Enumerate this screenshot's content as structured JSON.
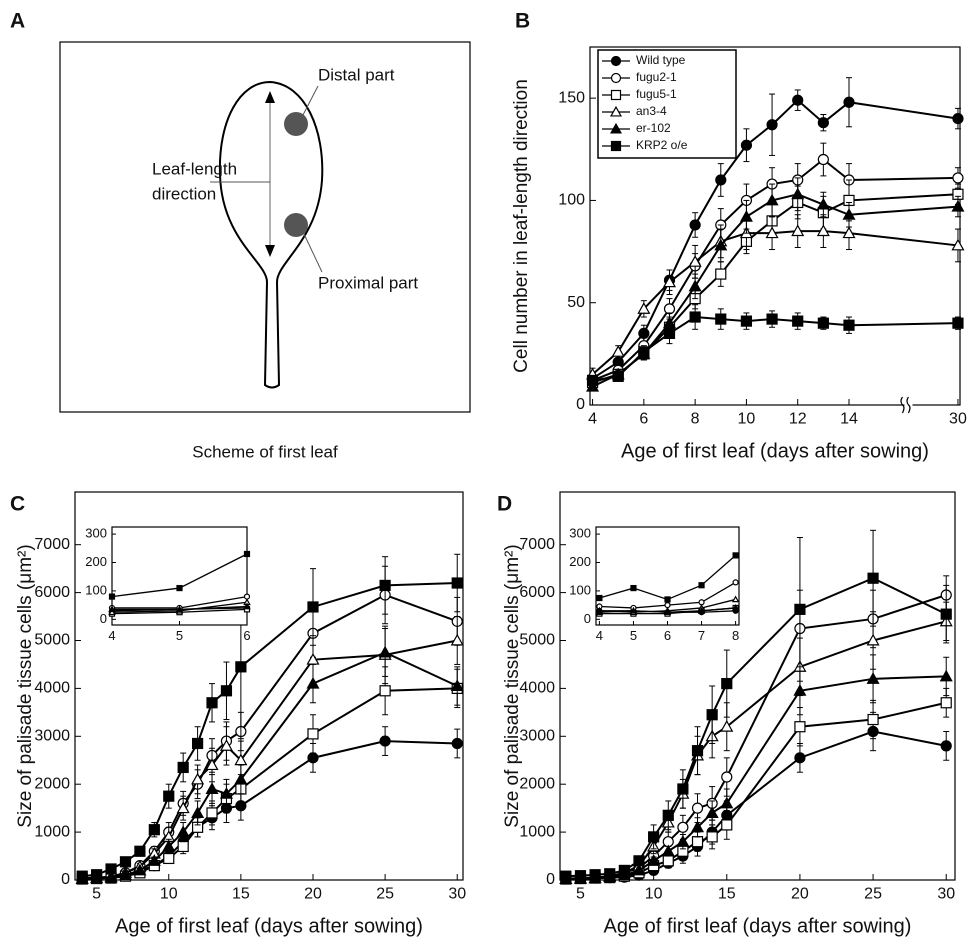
{
  "scheme": {
    "panel": "A",
    "title": "Scheme of first leaf",
    "distal": "Distal part",
    "direction": [
      "Leaf-length",
      "direction"
    ],
    "proximal": "Proximal part"
  },
  "chart_data": [
    {
      "type": "line",
      "panel": "B",
      "x_label": "Age of first leaf (days after sowing)",
      "y_label": "Cell number in leaf-length direction",
      "x": [
        4,
        5,
        6,
        7,
        8,
        9,
        10,
        11,
        12,
        13,
        14,
        30
      ],
      "xlim": [
        3.9,
        30.3
      ],
      "xticks": [
        4,
        6,
        8,
        10,
        12,
        14,
        30
      ],
      "x_break": true,
      "ylim": [
        0,
        175
      ],
      "yticks": [
        0,
        50,
        100,
        150
      ],
      "legend": "upper left",
      "series": [
        {
          "name": "Wild type",
          "color": "#000000",
          "marker": "circle",
          "filled": true,
          "values": [
            13,
            21,
            35,
            61,
            88,
            110,
            127,
            137,
            149,
            138,
            148,
            140
          ],
          "errors": [
            3,
            3,
            4,
            5,
            6,
            8,
            8,
            15,
            5,
            4,
            12,
            5
          ]
        },
        {
          "name": "fugu2-1",
          "color": "#000000",
          "marker": "circle",
          "filled": false,
          "values": [
            12,
            17,
            29,
            47,
            68,
            88,
            100,
            108,
            110,
            120,
            110,
            111
          ],
          "errors": [
            2,
            2,
            4,
            5,
            6,
            8,
            8,
            8,
            8,
            8,
            8,
            5
          ]
        },
        {
          "name": "fugu5-1",
          "color": "#000000",
          "marker": "square",
          "filled": false,
          "values": [
            11,
            15,
            25,
            38,
            52,
            64,
            80,
            90,
            99,
            94,
            100,
            103
          ],
          "errors": [
            2,
            2,
            3,
            5,
            5,
            6,
            6,
            8,
            8,
            8,
            10,
            5
          ]
        },
        {
          "name": "an3-4",
          "color": "#000000",
          "marker": "triangle",
          "filled": false,
          "values": [
            15,
            26,
            47,
            60,
            70,
            80,
            84,
            84,
            85,
            85,
            84,
            78
          ],
          "errors": [
            3,
            3,
            4,
            6,
            8,
            8,
            8,
            8,
            8,
            8,
            8,
            8
          ]
        },
        {
          "name": "er-102",
          "color": "#000000",
          "marker": "triangle",
          "filled": true,
          "values": [
            9,
            15,
            25,
            40,
            58,
            78,
            92,
            100,
            103,
            98,
            93,
            97
          ],
          "errors": [
            2,
            2,
            3,
            5,
            6,
            8,
            8,
            8,
            8,
            6,
            6,
            5
          ]
        },
        {
          "name": "KRP2 o/e",
          "color": "#000000",
          "marker": "square",
          "filled": true,
          "values": [
            12,
            14,
            26,
            35,
            43,
            42,
            41,
            42,
            41,
            40,
            39,
            40
          ],
          "errors": [
            2,
            2,
            3,
            5,
            6,
            5,
            4,
            4,
            4,
            3,
            4,
            3
          ]
        }
      ]
    },
    {
      "type": "line",
      "panel": "C",
      "x_label": "Age of first leaf (days after sowing)",
      "y_label": "Size of palisade tissue cells (μm²)",
      "x": [
        4,
        5,
        6,
        7,
        8,
        9,
        10,
        11,
        12,
        13,
        14,
        15,
        20,
        25,
        30
      ],
      "xlim": [
        3.5,
        30.4
      ],
      "xticks": [
        5,
        10,
        15,
        20,
        25,
        30
      ],
      "ylim": [
        0,
        8100
      ],
      "yticks": [
        0,
        1000,
        2000,
        3000,
        4000,
        5000,
        6000,
        7000
      ],
      "series": [
        {
          "color": "#000000",
          "marker": "circle",
          "filled": true,
          "values": [
            30,
            40,
            50,
            100,
            200,
            300,
            500,
            800,
            1100,
            1300,
            1500,
            1550,
            2550,
            2900,
            2850
          ],
          "errors": [
            10,
            10,
            20,
            30,
            50,
            60,
            100,
            150,
            200,
            250,
            300,
            300,
            300,
            300,
            300
          ]
        },
        {
          "color": "#000000",
          "marker": "circle",
          "filled": false,
          "values": [
            40,
            50,
            70,
            150,
            300,
            600,
            1000,
            1600,
            2000,
            2600,
            2900,
            3100,
            5150,
            5950,
            5400
          ],
          "errors": [
            10,
            10,
            20,
            40,
            60,
            100,
            200,
            250,
            300,
            350,
            400,
            400,
            500,
            600,
            500
          ]
        },
        {
          "color": "#000000",
          "marker": "square",
          "filled": false,
          "values": [
            20,
            30,
            40,
            80,
            150,
            300,
            450,
            700,
            1100,
            1400,
            1700,
            1900,
            3050,
            3950,
            4000
          ],
          "errors": [
            10,
            10,
            20,
            30,
            50,
            60,
            100,
            150,
            200,
            250,
            300,
            300,
            400,
            500,
            400
          ]
        },
        {
          "color": "#000000",
          "marker": "triangle",
          "filled": false,
          "values": [
            20,
            40,
            60,
            150,
            280,
            550,
            900,
            1500,
            2100,
            2400,
            2800,
            2500,
            4600,
            4700,
            5000
          ],
          "errors": [
            10,
            10,
            20,
            40,
            60,
            100,
            200,
            250,
            300,
            350,
            400,
            400,
            500,
            600,
            500
          ]
        },
        {
          "color": "#000000",
          "marker": "triangle",
          "filled": true,
          "values": [
            30,
            40,
            50,
            100,
            200,
            400,
            700,
            1000,
            1400,
            1900,
            1800,
            2100,
            4100,
            4750,
            4050
          ],
          "errors": [
            10,
            10,
            20,
            30,
            50,
            80,
            150,
            200,
            250,
            300,
            300,
            300,
            400,
            500,
            400
          ]
        },
        {
          "color": "#000000",
          "marker": "square",
          "filled": true,
          "values": [
            80,
            110,
            230,
            380,
            600,
            1050,
            1750,
            2350,
            2850,
            3700,
            3950,
            4450,
            5700,
            6150,
            6200
          ],
          "errors": [
            20,
            30,
            50,
            80,
            100,
            150,
            250,
            300,
            350,
            400,
            600,
            1500,
            800,
            600,
            600
          ]
        }
      ],
      "inset": {
        "x": [
          4,
          5,
          6
        ],
        "xlim": [
          4,
          6
        ],
        "xticks": [
          4,
          5,
          6
        ],
        "ylim": [
          -20,
          325
        ],
        "yticks": [
          0,
          100,
          200,
          300
        ],
        "series": [
          {
            "color": "#000000",
            "marker": "circle",
            "filled": true,
            "values": [
              30,
              35,
              40
            ]
          },
          {
            "color": "#000000",
            "marker": "circle",
            "filled": false,
            "values": [
              40,
              40,
              80
            ]
          },
          {
            "color": "#000000",
            "marker": "square",
            "filled": false,
            "values": [
              20,
              25,
              35
            ]
          },
          {
            "color": "#000000",
            "marker": "triangle",
            "filled": false,
            "values": [
              25,
              30,
              60
            ]
          },
          {
            "color": "#000000",
            "marker": "triangle",
            "filled": true,
            "values": [
              35,
              35,
              45
            ]
          },
          {
            "color": "#000000",
            "marker": "square",
            "filled": true,
            "values": [
              80,
              110,
              230
            ]
          }
        ]
      }
    },
    {
      "type": "line",
      "panel": "D",
      "x_label": "Age of first leaf (days after sowing)",
      "y_label": "Size of palisade tissue cells (μm²)",
      "x": [
        4,
        5,
        6,
        7,
        8,
        9,
        10,
        11,
        12,
        13,
        14,
        15,
        20,
        25,
        30
      ],
      "xlim": [
        3.6,
        30.6
      ],
      "xticks": [
        5,
        10,
        15,
        20,
        25,
        30
      ],
      "ylim": [
        0,
        8100
      ],
      "yticks": [
        0,
        1000,
        2000,
        3000,
        4000,
        5000,
        6000,
        7000
      ],
      "series": [
        {
          "color": "#000000",
          "marker": "circle",
          "filled": true,
          "values": [
            20,
            30,
            40,
            50,
            60,
            100,
            200,
            350,
            500,
            700,
            1000,
            1350,
            2550,
            3100,
            2800
          ],
          "errors": [
            10,
            10,
            10,
            20,
            20,
            40,
            60,
            100,
            150,
            200,
            250,
            300,
            300,
            400,
            300
          ]
        },
        {
          "color": "#000000",
          "marker": "circle",
          "filled": false,
          "values": [
            30,
            40,
            50,
            80,
            150,
            250,
            500,
            800,
            1100,
            1500,
            1600,
            2150,
            5250,
            5450,
            5950
          ],
          "errors": [
            10,
            10,
            20,
            30,
            50,
            60,
            100,
            200,
            250,
            300,
            350,
            400,
            800,
            600,
            400
          ]
        },
        {
          "color": "#000000",
          "marker": "square",
          "filled": false,
          "values": [
            20,
            30,
            40,
            50,
            80,
            150,
            300,
            400,
            600,
            800,
            900,
            1150,
            3200,
            3350,
            3700
          ],
          "errors": [
            10,
            10,
            10,
            20,
            30,
            50,
            80,
            100,
            150,
            200,
            250,
            300,
            400,
            400,
            300
          ]
        },
        {
          "color": "#000000",
          "marker": "triangle",
          "filled": false,
          "values": [
            20,
            30,
            40,
            80,
            150,
            300,
            700,
            1200,
            1800,
            2600,
            3000,
            3200,
            4450,
            5000,
            5400
          ],
          "errors": [
            10,
            10,
            20,
            30,
            50,
            80,
            150,
            200,
            300,
            400,
            450,
            500,
            600,
            600,
            400
          ]
        },
        {
          "color": "#000000",
          "marker": "triangle",
          "filled": true,
          "values": [
            20,
            30,
            40,
            60,
            100,
            200,
            400,
            600,
            800,
            1100,
            1400,
            1600,
            3950,
            4200,
            4250
          ],
          "errors": [
            10,
            10,
            10,
            20,
            30,
            50,
            80,
            100,
            150,
            200,
            250,
            300,
            500,
            500,
            400
          ]
        },
        {
          "color": "#000000",
          "marker": "square",
          "filled": true,
          "values": [
            80,
            90,
            110,
            130,
            200,
            400,
            900,
            1350,
            1900,
            2700,
            3450,
            4100,
            5650,
            6300,
            5550
          ],
          "errors": [
            20,
            20,
            30,
            40,
            60,
            100,
            250,
            300,
            400,
            500,
            600,
            700,
            1500,
            1000,
            600
          ]
        }
      ],
      "inset": {
        "x": [
          4,
          5,
          6,
          7,
          8
        ],
        "xlim": [
          3.9,
          8.1
        ],
        "xticks": [
          4,
          5,
          6,
          7,
          8
        ],
        "ylim": [
          -20,
          325
        ],
        "yticks": [
          0,
          100,
          200,
          300
        ],
        "series": [
          {
            "color": "#000000",
            "marker": "circle",
            "filled": true,
            "values": [
              30,
              30,
              25,
              25,
              30
            ]
          },
          {
            "color": "#000000",
            "marker": "circle",
            "filled": false,
            "values": [
              45,
              40,
              50,
              60,
              130
            ]
          },
          {
            "color": "#000000",
            "marker": "square",
            "filled": false,
            "values": [
              20,
              20,
              20,
              30,
              40
            ]
          },
          {
            "color": "#000000",
            "marker": "triangle",
            "filled": false,
            "values": [
              30,
              25,
              30,
              40,
              70
            ]
          },
          {
            "color": "#000000",
            "marker": "triangle",
            "filled": true,
            "values": [
              25,
              30,
              25,
              30,
              40
            ]
          },
          {
            "color": "#000000",
            "marker": "square",
            "filled": true,
            "values": [
              75,
              110,
              70,
              120,
              225
            ]
          }
        ]
      }
    }
  ]
}
